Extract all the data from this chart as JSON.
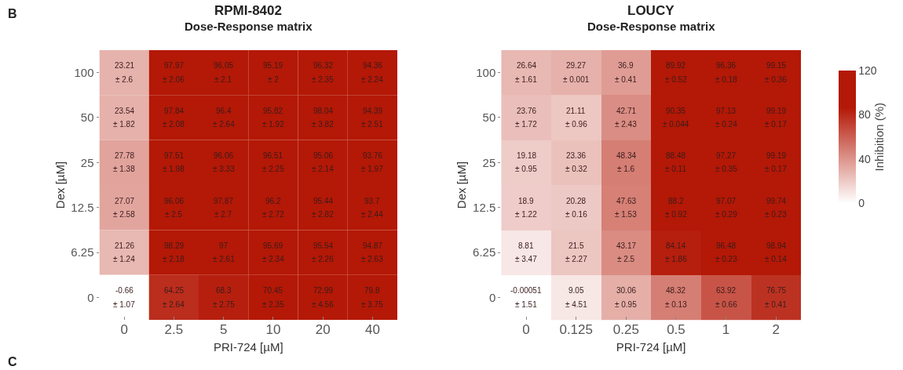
{
  "chart_data": [
    {
      "type": "heatmap",
      "title": "RPMI-8402",
      "subtitle": "Dose-Response matrix",
      "xlabel": "PRI-724 [µM]",
      "ylabel": "Dex [µM]",
      "data_labels": true,
      "categories": [
        "0",
        "2.5",
        "5",
        "10",
        "20",
        "40"
      ],
      "y_categories": [
        "100",
        "50",
        "25",
        "12.5",
        "6.25",
        "0"
      ],
      "cells": [
        [
          23.21,
          97.97,
          96.05,
          95.19,
          96.32,
          94.36
        ],
        [
          23.54,
          97.84,
          96.4,
          95.82,
          98.04,
          94.39
        ],
        [
          27.78,
          97.51,
          96.06,
          96.51,
          95.06,
          93.76
        ],
        [
          27.07,
          96.06,
          97.87,
          96.2,
          95.44,
          93.7
        ],
        [
          21.26,
          98.29,
          97,
          95.69,
          95.54,
          94.87
        ],
        [
          -0.66,
          64.25,
          68.3,
          70.45,
          72.99,
          79.8
        ]
      ],
      "annotations": [
        "B",
        "C",
        "± 2.6",
        "± 2.06",
        "± 2.1",
        "± 2",
        "± 2.35",
        "± 2.24",
        "± 1.82",
        "± 2.08",
        "± 2.64",
        "± 1.92",
        "± 3.82",
        "± 2.51",
        "± 1.38",
        "± 1.98",
        "± 3.33",
        "± 2.25",
        "± 2.14",
        "± 1.97",
        "± 2.58",
        "± 2.5",
        "± 2.7",
        "± 2.72",
        "± 2.82",
        "± 2.44",
        "± 1.24",
        "± 2.18",
        "± 2.61",
        "± 2.34",
        "± 2.26",
        "± 2.63",
        "± 1.07",
        "± 2.64",
        "± 2.75",
        "± 2.35",
        "± 4.56",
        "± 3.75"
      ]
    },
    {
      "type": "heatmap",
      "title": "LOUCY",
      "subtitle": "Dose-Response matrix",
      "xlabel": "PRI-724 [µM]",
      "ylabel": "Dex [µM]",
      "clabel": "Inhibition (%)",
      "clim": [
        0,
        120
      ],
      "cticks": [
        0,
        40,
        80,
        120
      ],
      "data_labels": true,
      "categories": [
        "0",
        "0.125",
        "0.25",
        "0.5",
        "1",
        "2"
      ],
      "y_categories": [
        "100",
        "50",
        "25",
        "12.5",
        "6.25",
        "0"
      ],
      "cells": [
        [
          26.64,
          29.27,
          36.9,
          89.92,
          96.36,
          99.15
        ],
        [
          23.76,
          21.11,
          42.71,
          90.35,
          97.13,
          99.19
        ],
        [
          19.18,
          23.36,
          48.34,
          88.48,
          97.27,
          99.19
        ],
        [
          18.9,
          20.28,
          47.63,
          88.2,
          97.07,
          99.74
        ],
        [
          8.81,
          21.5,
          43.17,
          84.14,
          96.48,
          98.94
        ],
        [
          -0.00051,
          9.05,
          30.06,
          48.32,
          63.92,
          76.75
        ]
      ],
      "annotations": [
        "± 1.61",
        "± 0.001",
        "± 0.41",
        "± 0.52",
        "± 0.18",
        "± 0.36",
        "± 1.72",
        "± 0.96",
        "± 2.43",
        "± 0.044",
        "± 0.24",
        "± 0.17",
        "± 0.95",
        "± 0.32",
        "± 1.6",
        "± 0.11",
        "± 0.35",
        "± 0.17",
        "± 1.22",
        "± 0.16",
        "± 1.53",
        "± 0.92",
        "± 0.29",
        "± 0.23",
        "± 3.47",
        "± 2.27",
        "± 2.5",
        "± 1.86",
        "± 0.23",
        "± 0.14",
        "± 1.51",
        "± 4.51",
        "± 0.95",
        "± 0.13",
        "± 0.66",
        "± 0.41"
      ]
    }
  ]
}
